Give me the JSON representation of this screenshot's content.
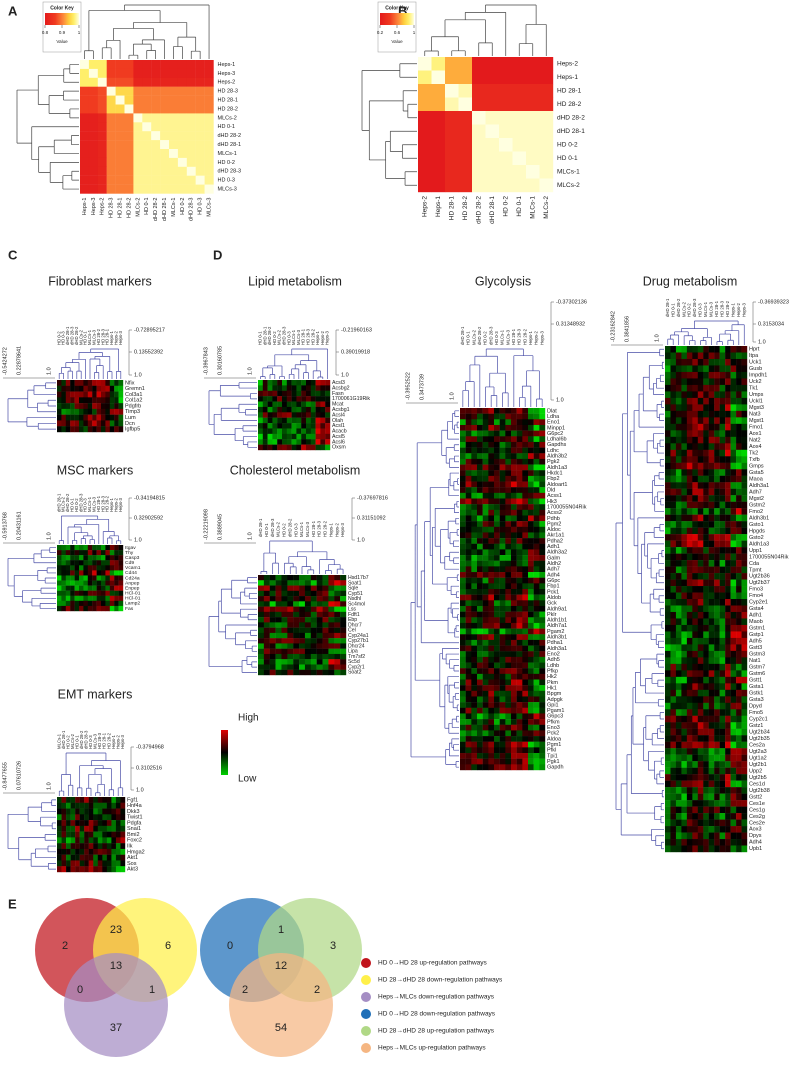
{
  "panels": {
    "a": {
      "label": "A",
      "color_key": {
        "title": "Color Key",
        "axis_label": "Value",
        "range": [
          0.8,
          1
        ],
        "ticks": [
          0.8,
          0.9,
          1
        ]
      },
      "rows": [
        "Heps-1",
        "Heps-3",
        "Heps-2",
        "HD 28-3",
        "HD 28-1",
        "HD 28-2",
        "MLCs-2",
        "HD 0-1",
        "dHD 28-2",
        "dHD 28-1",
        "MLCs-1",
        "HD 0-2",
        "dHD 28-3",
        "HD 0-3",
        "MLCs-3"
      ],
      "columns": [
        "Heps-1",
        "Heps-3",
        "Heps-2",
        "HD 28-3",
        "HD 28-1",
        "HD 28-2",
        "MLCs-2",
        "HD 0-1",
        "dHD 28-2",
        "dHD 28-1",
        "MLCs-1",
        "HD 0-2",
        "dHD 28-3",
        "HD 0-3",
        "MLCs-3"
      ],
      "matrix": [
        [
          1,
          0.97,
          0.97,
          0.86,
          0.86,
          0.86,
          0.81,
          0.81,
          0.81,
          0.81,
          0.81,
          0.81,
          0.81,
          0.81,
          0.81
        ],
        [
          0.97,
          1,
          0.97,
          0.86,
          0.86,
          0.86,
          0.81,
          0.81,
          0.81,
          0.81,
          0.81,
          0.81,
          0.81,
          0.81,
          0.81
        ],
        [
          0.97,
          0.97,
          1,
          0.87,
          0.87,
          0.87,
          0.82,
          0.82,
          0.82,
          0.82,
          0.82,
          0.82,
          0.82,
          0.82,
          0.82
        ],
        [
          0.86,
          0.86,
          0.87,
          1,
          0.95,
          0.95,
          0.9,
          0.9,
          0.9,
          0.9,
          0.9,
          0.9,
          0.9,
          0.9,
          0.9
        ],
        [
          0.86,
          0.86,
          0.87,
          0.95,
          1,
          0.95,
          0.9,
          0.9,
          0.9,
          0.9,
          0.9,
          0.9,
          0.9,
          0.9,
          0.9
        ],
        [
          0.86,
          0.86,
          0.87,
          0.95,
          0.95,
          1,
          0.9,
          0.9,
          0.9,
          0.9,
          0.9,
          0.9,
          0.9,
          0.9,
          0.9
        ],
        [
          0.81,
          0.81,
          0.82,
          0.9,
          0.9,
          0.9,
          1,
          0.98,
          0.98,
          0.98,
          0.98,
          0.98,
          0.98,
          0.98,
          0.98
        ],
        [
          0.81,
          0.81,
          0.82,
          0.9,
          0.9,
          0.9,
          0.98,
          1,
          0.98,
          0.98,
          0.98,
          0.98,
          0.98,
          0.98,
          0.98
        ],
        [
          0.81,
          0.81,
          0.82,
          0.9,
          0.9,
          0.9,
          0.98,
          0.98,
          1,
          0.98,
          0.98,
          0.98,
          0.98,
          0.98,
          0.98
        ],
        [
          0.81,
          0.81,
          0.82,
          0.9,
          0.9,
          0.9,
          0.98,
          0.98,
          0.98,
          1,
          0.98,
          0.98,
          0.98,
          0.98,
          0.98
        ],
        [
          0.81,
          0.81,
          0.82,
          0.9,
          0.9,
          0.9,
          0.98,
          0.98,
          0.98,
          0.98,
          1,
          0.98,
          0.98,
          0.98,
          0.98
        ],
        [
          0.81,
          0.81,
          0.82,
          0.9,
          0.9,
          0.9,
          0.98,
          0.98,
          0.98,
          0.98,
          0.98,
          1,
          0.98,
          0.98,
          0.98
        ],
        [
          0.81,
          0.81,
          0.82,
          0.9,
          0.9,
          0.9,
          0.98,
          0.98,
          0.98,
          0.98,
          0.98,
          0.98,
          1,
          0.98,
          0.98
        ],
        [
          0.81,
          0.81,
          0.82,
          0.9,
          0.9,
          0.9,
          0.98,
          0.98,
          0.98,
          0.98,
          0.98,
          0.98,
          0.98,
          1,
          0.98
        ],
        [
          0.81,
          0.81,
          0.82,
          0.9,
          0.9,
          0.9,
          0.98,
          0.98,
          0.98,
          0.98,
          0.98,
          0.98,
          0.98,
          0.98,
          1
        ]
      ]
    },
    "b": {
      "label": "B",
      "color_key": {
        "title": "Color Key",
        "axis_label": "Value",
        "range": [
          0.2,
          1
        ],
        "ticks": [
          0.2,
          0.6,
          1
        ]
      },
      "rows": [
        "Heps-2",
        "Heps-1",
        "HD 28-1",
        "HD 28-2",
        "dHD 28-2",
        "dHD 28-1",
        "HD 0-2",
        "HD 0-1",
        "MLCs-1",
        "MLCs-2"
      ],
      "columns": [
        "Heps-2",
        "Heps-1",
        "HD 28-1",
        "HD 28-2",
        "dHD 28-2",
        "dHD 28-1",
        "HD 0-2",
        "HD 0-1",
        "MLCs-1",
        "MLCs-2"
      ],
      "matrix": [
        [
          1,
          0.9,
          0.7,
          0.7,
          0.2,
          0.2,
          0.2,
          0.2,
          0.2,
          0.2
        ],
        [
          0.9,
          1,
          0.7,
          0.7,
          0.2,
          0.2,
          0.2,
          0.2,
          0.2,
          0.2
        ],
        [
          0.7,
          0.7,
          1,
          0.95,
          0.3,
          0.3,
          0.3,
          0.3,
          0.3,
          0.3
        ],
        [
          0.7,
          0.7,
          0.95,
          1,
          0.3,
          0.3,
          0.3,
          0.3,
          0.3,
          0.3
        ],
        [
          0.2,
          0.2,
          0.3,
          0.3,
          1,
          0.97,
          0.97,
          0.97,
          0.97,
          0.97
        ],
        [
          0.2,
          0.2,
          0.3,
          0.3,
          0.97,
          1,
          0.97,
          0.97,
          0.97,
          0.97
        ],
        [
          0.2,
          0.2,
          0.3,
          0.3,
          0.97,
          0.97,
          1,
          0.97,
          0.97,
          0.97
        ],
        [
          0.2,
          0.2,
          0.3,
          0.3,
          0.97,
          0.97,
          0.97,
          1,
          0.97,
          0.97
        ],
        [
          0.2,
          0.2,
          0.3,
          0.3,
          0.97,
          0.97,
          0.97,
          0.97,
          1,
          0.97
        ],
        [
          0.2,
          0.2,
          0.3,
          0.3,
          0.97,
          0.97,
          0.97,
          0.97,
          0.97,
          1
        ]
      ]
    },
    "c": {
      "label": "C",
      "heatmaps": [
        {
          "title": "Fibroblast markers",
          "right_scale": [
            "-0.72895217",
            "0.13552392",
            "1.0"
          ],
          "left_scale": [
            "-0.5424272",
            "0.22878641",
            "1.0"
          ],
          "columns": [
            "HD 0-2",
            "HD 0-3",
            "dHD 28-1",
            "dHD 28-3",
            "dHD 28-2",
            "MLCs-2",
            "HD 0-1",
            "MLCs-1",
            "MLCs-3",
            "HD 28-2",
            "HD 28-3",
            "HD 28-1",
            "Heps-1",
            "Heps-2",
            "Heps-3"
          ],
          "genes": [
            "Nfix",
            "Gremn1",
            "Col3a1",
            "Col1a2",
            "Pdgfrb",
            "Timp3",
            "Lum",
            "Dcn",
            "Igfbp5"
          ]
        },
        {
          "title": "MSC markers",
          "right_scale": [
            "-0.34194815",
            "0.32902592",
            "1.0"
          ],
          "left_scale": [
            "-0.5913768",
            "0.20431161",
            "1.0"
          ],
          "columns": [
            "dHD 28-1",
            "MLCs-2",
            "dHD 28-2",
            "HD 0-1",
            "HD 0-2",
            "dHD 28-3",
            "HD 0-3",
            "MLCs-1",
            "MLCs-3",
            "HD 28-1",
            "HD 28-3",
            "HD 28-2",
            "Heps-1",
            "Heps-2",
            "Heps-3"
          ],
          "genes": [
            "Itgav",
            "Thy",
            "Casp3",
            "Cd9",
            "Vcam1",
            "Cd44",
            "Cd24a",
            "Anpep",
            "Enpep",
            "HCl-01",
            "HCl-01",
            "Lamp2",
            "Fas"
          ]
        },
        {
          "title": "EMT markers",
          "right_scale": [
            "-0.3794968",
            "0.3102516",
            "1.0"
          ],
          "left_scale": [
            "-0.8477655",
            "0.07610726",
            "1.0"
          ],
          "columns": [
            "MLCs-1",
            "dHD 28-1",
            "HD 0-2",
            "MLCs-2",
            "HD 0-1",
            "dHD 28-2",
            "dHD 28-3",
            "HD 0-3",
            "MLCs-3",
            "HD 28-3",
            "HD 28-1",
            "HD 28-2",
            "Heps-1",
            "Heps-2",
            "Heps-3"
          ],
          "genes": [
            "Fgf1",
            "Hnf4a",
            "Dkk3",
            "Twist1",
            "Pdgfa",
            "Snai1",
            "Bmi2",
            "Foxc2",
            "Ilk",
            "Hmga2",
            "Akt1",
            "Sos",
            "Akt3"
          ]
        }
      ]
    },
    "d": {
      "label": "D",
      "heatmaps": [
        {
          "title": "Lipid metabolism",
          "right_scale": [
            "-0.21960163",
            "0.39019918",
            "1.0"
          ],
          "left_scale": [
            "-0.3967843",
            "0.30160785",
            "1.0"
          ],
          "columns": [
            "HD 0-1",
            "dHD 28-1",
            "dHD 28-2",
            "HD 0-2",
            "MLCs-2",
            "dHD 28-3",
            "HD 0-3",
            "MLCs-1",
            "MLCs-3",
            "HD 28-1",
            "HD 28-3",
            "HD 28-2",
            "Heps-1",
            "Heps-2",
            "Heps-3"
          ],
          "genes": [
            "Acsl3",
            "Acsbg2",
            "Fasn",
            "1700061G19Rik",
            "Mcat",
            "Acsbg1",
            "Acsl4",
            "Olah",
            "Acsl1",
            "Acacb",
            "Acsl5",
            "Acsl6",
            "Oxsm"
          ]
        },
        {
          "title": "Cholesterol metabolism",
          "right_scale": [
            "-0.37697816",
            "0.31151092",
            "1.0"
          ],
          "left_scale": [
            "-0.22219098",
            "0.3889045",
            "1.0"
          ],
          "columns": [
            "dHD 28-1",
            "HD 0-1",
            "dHD 28-3",
            "MLCs-2",
            "HD 0-2",
            "dHD 28-2",
            "HD 0-3",
            "MLCs-1",
            "MLCs-3",
            "HD 28-1",
            "HD 28-3",
            "HD 28-2",
            "Heps-1",
            "Heps-2",
            "Heps-3"
          ],
          "genes": [
            "Hsd17b7",
            "Soat1",
            "Sqle",
            "Cyp51",
            "Nsdhl",
            "Sc4mol",
            "Lss",
            "Fdft1",
            "Ebp",
            "Dhcr7",
            "Cel",
            "Cyp24a1",
            "Cyp27b1",
            "Dhcr24",
            "Lipa",
            "Tm7sf2",
            "Sc5d",
            "Cyp2r1",
            "Soat2"
          ]
        },
        {
          "title": "Glycolysis",
          "right_scale": [
            "-0.37302136",
            "0.31348932",
            "1.0"
          ],
          "left_scale": [
            "-0.3952522",
            "0.3473739",
            "1.0"
          ],
          "columns": [
            "dHD 28-1",
            "HD 0-1",
            "MLCs-2",
            "dHD 28-2",
            "HD 0-2",
            "dHD 28-3",
            "HD 0-3",
            "MLCs-1",
            "MLCs-3",
            "HD 28-1",
            "HD 28-3",
            "HD 28-2",
            "Heps-1",
            "Heps-2",
            "Heps-3"
          ],
          "genes": [
            "Dlat",
            "Ldha",
            "Eno1",
            "Minpp1",
            "G6pc2",
            "Ldhal6b",
            "Gapdhs",
            "Ldhc",
            "Aldh3b2",
            "Pgk2",
            "Aldh1a3",
            "Hkdc1",
            "Fbp2",
            "Aldoart1",
            "Dld",
            "Acss1",
            "Hk3",
            "1700055N04Rik",
            "Acss2",
            "Pdhb",
            "Pgm2",
            "Aldoc",
            "Akr1a1",
            "Pdha2",
            "Adh1",
            "Aldh3a2",
            "Galm",
            "Aldh2",
            "Adh7",
            "Adh4",
            "G6pc",
            "Fbp1",
            "Pck1",
            "Aldob",
            "Gck",
            "Aldh9a1",
            "Pklr",
            "Aldh1b1",
            "Aldh7a1",
            "Pgam2",
            "Aldh3b1",
            "Pdha1",
            "Aldh3a1",
            "Eno2",
            "Adh5",
            "Ldhb",
            "Pfkp",
            "Hk2",
            "Pkm",
            "Hk1",
            "Bpgm",
            "Adpgk",
            "Gpi1",
            "Pgam1",
            "G6pc3",
            "Pfkm",
            "Eno3",
            "Pck2",
            "Aldoa",
            "Pgm1",
            "Pfkl",
            "Tpi1",
            "Pgk1",
            "Gapdh"
          ]
        },
        {
          "title": "Drug metabolism",
          "right_scale": [
            "-0.36939323",
            "0.3153034",
            "1.0"
          ],
          "left_scale": [
            "-0.23162842",
            "0.3841856",
            "1.0"
          ],
          "columns": [
            "dHD 28-1",
            "HD 0-1",
            "dHD 28-2",
            "MLCs-2",
            "HD 0-2",
            "dHD 28-3",
            "HD 0-3",
            "MLCs-1",
            "MLCs-3",
            "HD 28-1",
            "HD 28-3",
            "HD 28-2",
            "Heps-1",
            "Heps-2",
            "Heps-3"
          ],
          "genes": [
            "Hprt",
            "Itpa",
            "Uck1",
            "Gusb",
            "Impdh1",
            "Uck2",
            "Tk1",
            "Umps",
            "Uckl1",
            "Mgst3",
            "Nat3",
            "Mgst1",
            "Fmo1",
            "Aox1",
            "Nat2",
            "Aox4",
            "Tk2",
            "Txfb",
            "Gmps",
            "Gsta5",
            "Maoa",
            "Aldh3a1",
            "Adh7",
            "Mgst2",
            "Gstm2",
            "Fmo2",
            "Aldh3b1",
            "Gsto1",
            "Hpgds",
            "Gsto2",
            "Aldh1a3",
            "Upp1",
            "1700055N04Rik",
            "Cda",
            "Tpmt",
            "Ugt2b36",
            "Ugt2b37",
            "Fmo3",
            "Fmo4",
            "Cyp2e1",
            "Gsta4",
            "Adh1",
            "Maob",
            "Gstm1",
            "Gstp1",
            "Adh5",
            "Gstt3",
            "Gstm3",
            "Nat1",
            "Gstm7",
            "Gstm6",
            "Gstt1",
            "Gsta1",
            "Gstk1",
            "Gsta3",
            "Dpyd",
            "Fmo5",
            "Cyp2c1",
            "Gstz1",
            "Ugt2b34",
            "Ugt2b35",
            "Ces2a",
            "Ugt2a3",
            "Ugt1a2",
            "Ugt2b1",
            "Upp2",
            "Ugt2b5",
            "Ces1d",
            "Ugt2b38",
            "Gstt2",
            "Ces1e",
            "Ces1g",
            "Ces2g",
            "Ces2e",
            "Aox3",
            "Dpys",
            "Adh4",
            "Upb1"
          ]
        }
      ]
    },
    "expression_legend": {
      "high": "High",
      "low": "Low"
    },
    "e": {
      "label": "E",
      "venns": [
        {
          "sets": [
            0,
            1,
            2
          ],
          "counts": [
            2,
            23,
            6,
            13,
            0,
            1,
            37
          ]
        },
        {
          "sets": [
            3,
            4,
            5
          ],
          "counts": [
            0,
            1,
            3,
            12,
            2,
            2,
            54
          ]
        }
      ],
      "legend": [
        {
          "name": "HD 0→HD 28 up-regulation pathways",
          "color": "#c0141c"
        },
        {
          "name": "HD 28→dHD 28 down-regulation pathways",
          "color": "#fff04a"
        },
        {
          "name": "Heps→MLCs down-regulation pathways",
          "color": "#a58ec4"
        },
        {
          "name": "HD 0→HD 28 down-regulation pathways",
          "color": "#1f6fb8"
        },
        {
          "name": "HD 28→dHD 28 up-regulation pathways",
          "color": "#b0d886"
        },
        {
          "name": "Heps→MLCs up-regulation pathways",
          "color": "#f5b682"
        }
      ]
    }
  }
}
